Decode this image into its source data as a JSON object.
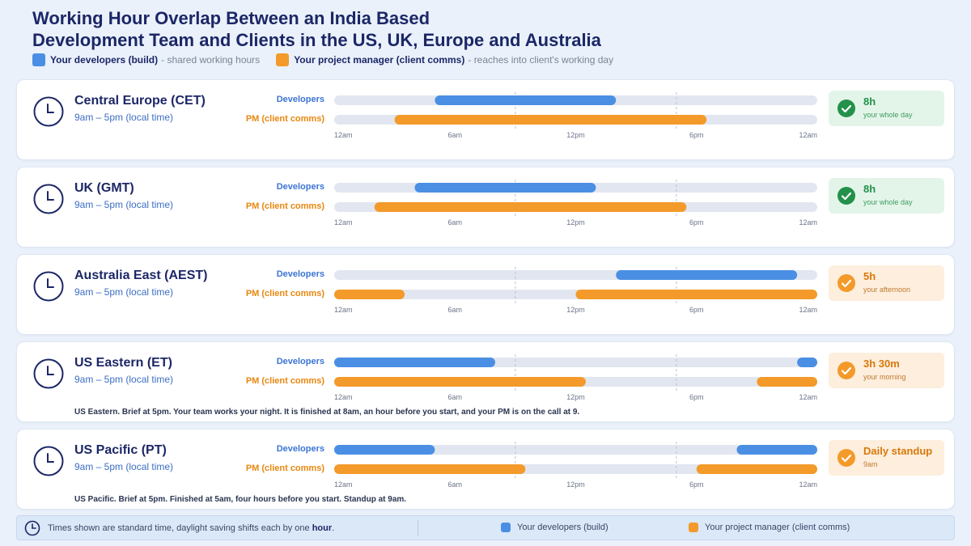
{
  "title": {
    "line1": "Working Hour Overlap Between an India Based",
    "line2": "Development Team and Clients in the US, UK, Europe and Australia"
  },
  "legend": {
    "dev_label": "Your developers (build)",
    "dev_note": "- shared working hours",
    "pm_label": "Your project manager (client comms)",
    "pm_note": "- reaches into client's working day"
  },
  "colors": {
    "developers": "#4a8fe4",
    "pm": "#f39a2a",
    "track": "#e2e6f0",
    "green": "#23914b",
    "orange": "#f39a2a"
  },
  "row_labels": {
    "developers": "Developers",
    "pm": "PM (client comms)"
  },
  "ticks": [
    "12am",
    "6am",
    "12pm",
    "6pm",
    "12am"
  ],
  "chart_data": {
    "type": "bar",
    "x_axis": {
      "unit": "hour of day (client local time)",
      "range": [
        0,
        24
      ],
      "tick_labels": [
        "12am",
        "6am",
        "12pm",
        "6pm",
        "12am"
      ],
      "marked_hours": [
        9,
        17
      ]
    },
    "categories": [
      "Central Europe (CET)",
      "UK (GMT)",
      "Australia East (AEST)",
      "US Eastern (ET)",
      "US Pacific (PT)"
    ],
    "zones": [
      {
        "name": "Central Europe (CET)",
        "hours": "9am – 5pm (local time)",
        "developers": [
          [
            5,
            14
          ]
        ],
        "pm": [
          [
            3,
            18.5
          ]
        ],
        "badge": {
          "main": "8h",
          "sub": "your whole day",
          "tone": "green"
        },
        "note": ""
      },
      {
        "name": "UK (GMT)",
        "hours": "9am – 5pm (local time)",
        "developers": [
          [
            4,
            13
          ]
        ],
        "pm": [
          [
            2,
            17.5
          ]
        ],
        "badge": {
          "main": "8h",
          "sub": "your whole day",
          "tone": "green"
        },
        "note": ""
      },
      {
        "name": "Australia East (AEST)",
        "hours": "9am – 5pm (local time)",
        "developers": [
          [
            14,
            23
          ]
        ],
        "pm": [
          [
            0,
            3.5
          ],
          [
            12,
            24
          ]
        ],
        "badge": {
          "main": "5h",
          "sub": "your afternoon",
          "tone": "orange"
        },
        "note": ""
      },
      {
        "name": "US Eastern (ET)",
        "hours": "9am – 5pm (local time)",
        "developers": [
          [
            0,
            8
          ],
          [
            23,
            24
          ]
        ],
        "pm": [
          [
            0,
            12.5
          ],
          [
            21,
            24
          ]
        ],
        "badge": {
          "main": "3h 30m",
          "sub": "your morning",
          "tone": "orange"
        },
        "note": "US Eastern. Brief at 5pm. Your team works your night. It is finished at 8am, an hour before you start, and your PM is on the call at 9."
      },
      {
        "name": "US Pacific (PT)",
        "hours": "9am – 5pm (local time)",
        "developers": [
          [
            0,
            5
          ],
          [
            20,
            24
          ]
        ],
        "pm": [
          [
            0,
            9.5
          ],
          [
            18,
            24
          ]
        ],
        "badge": {
          "main": "Daily standup",
          "sub": "9am",
          "tone": "orange"
        },
        "note": "US Pacific. Brief at 5pm. Finished at 5am, four hours before you start. Standup at 9am."
      }
    ]
  },
  "footer": {
    "note_before": "Times shown are standard time, daylight saving shifts each by one ",
    "note_bold": "hour",
    "note_after": ".",
    "dev_label": "Your developers (build)",
    "pm_label": "Your project manager (client comms)"
  }
}
